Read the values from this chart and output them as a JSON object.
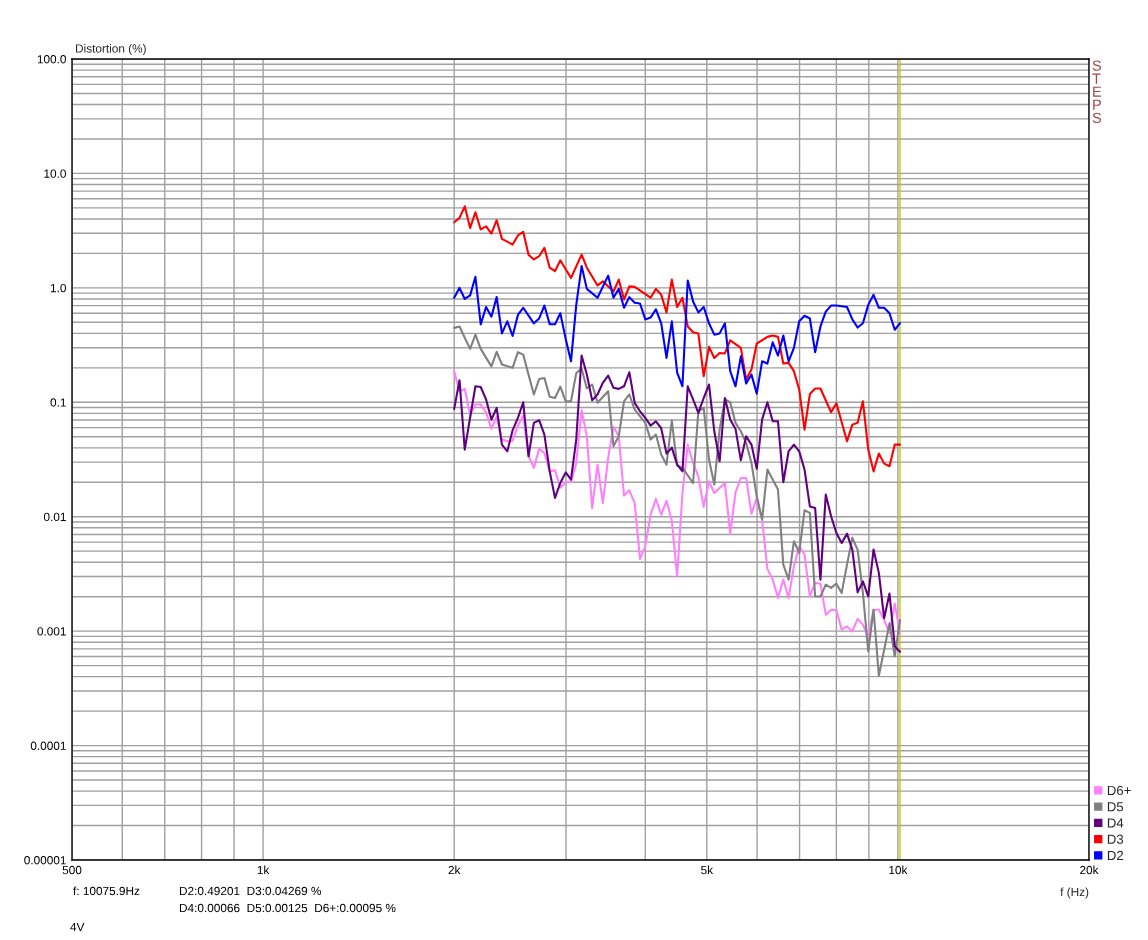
{
  "chart_data": {
    "type": "line",
    "xlabel": "f (Hz)",
    "ylabel": "Distortion (%)",
    "log": "xy",
    "xlim": [
      500,
      20000
    ],
    "xticks": [
      500,
      {
        "value": 1000,
        "label": "1k"
      },
      {
        "value": 2000,
        "label": "2k"
      },
      {
        "value": 5000,
        "label": "5k"
      },
      {
        "value": 10000,
        "label": "10k"
      },
      {
        "value": 20000,
        "label": "20k"
      }
    ],
    "ylim": [
      1e-05,
      100
    ],
    "yticks": [
      {
        "value": 1e-05,
        "label": "0.00001"
      },
      0.0001,
      0.001,
      0.01,
      0.1,
      {
        "value": 1,
        "label": "1.0"
      },
      {
        "value": 10,
        "label": "10.0"
      },
      {
        "value": 100,
        "label": "100.0"
      }
    ],
    "grid": true,
    "legend": "bottom right",
    "line_style": "solid",
    "ref_lines": [
      {
        "axis": "x",
        "value": 10075.9,
        "color": "#c8c800"
      }
    ],
    "annotations": [
      "STEPS",
      "f: 10075.9Hz",
      "D2:0.49201  D3:0.04269 %",
      "D4:0.00066  D5:0.00125  D6+:0.00095 %",
      "4V"
    ],
    "series": [
      {
        "name": "D6+",
        "color": "#ff80ff",
        "x": [
          2000,
          2039,
          2078,
          2119,
          2160,
          2202,
          2245,
          2289,
          2333,
          2378,
          2425,
          2472,
          2520,
          2569,
          2619,
          2670,
          2722,
          2774,
          2828,
          2883,
          2939,
          2997,
          3055,
          3114,
          3175,
          3236,
          3299,
          3364,
          3429,
          3496,
          3564,
          3633,
          3703,
          3775,
          3849,
          3924,
          4000,
          4078,
          4157,
          4238,
          4320,
          4404,
          4490,
          4577,
          4666,
          4757,
          4849,
          4944,
          5040,
          5138,
          5339,
          5443,
          5549,
          5657,
          5767,
          5879,
          5993,
          6110,
          6229,
          6350,
          6473,
          6599,
          6727,
          6858,
          6991,
          7127,
          7266,
          7407,
          7551,
          7698,
          7848,
          8000,
          8156,
          8314,
          8476,
          8640,
          8808,
          8980,
          9154,
          9332,
          9514,
          9699,
          9887,
          10075.9
        ],
        "values": [
          0.187,
          0.125,
          0.131,
          0.078,
          0.0955,
          0.0955,
          0.0818,
          0.0585,
          0.0745,
          0.0472,
          0.0456,
          0.0462,
          0.0625,
          0.0766,
          0.0342,
          0.0267,
          0.0392,
          0.0361,
          0.0249,
          0.0255,
          0.0179,
          0.02,
          0.02,
          0.0295,
          0.0851,
          0.0504,
          0.0119,
          0.0285,
          0.0132,
          0.0327,
          0.061,
          0.0504,
          0.0153,
          0.017,
          0.0132,
          0.00428,
          0.00551,
          0.0104,
          0.0143,
          0.0104,
          0.0138,
          0.00925,
          0.00301,
          0.0161,
          0.0427,
          0.0295,
          0.0225,
          0.0122,
          0.0204,
          0.0161,
          0.0197,
          0.00711,
          0.0163,
          0.0218,
          0.0218,
          0.0106,
          0.0146,
          0.00944,
          0.0035,
          0.00282,
          0.00195,
          0.00282,
          0.00195,
          0.00368,
          0.00551,
          0.00467,
          0.00201,
          0.00264,
          0.0026,
          0.00139,
          0.00154,
          0.00152,
          0.00103,
          0.0011,
          0.000995,
          0.00128,
          0.00114,
          0.000873,
          0.00154,
          0.00154,
          0.00126,
          0.000964,
          0.00174,
          0.00095
        ]
      },
      {
        "name": "D5",
        "color": "#808080",
        "x": [
          2000,
          2039,
          2078,
          2119,
          2160,
          2202,
          2289,
          2333,
          2378,
          2472,
          2520,
          2569,
          2670,
          2722,
          2774,
          2828,
          2883,
          2939,
          2997,
          3055,
          3114,
          3175,
          3236,
          3299,
          3364,
          3496,
          3564,
          3633,
          3703,
          3775,
          3849,
          4000,
          4078,
          4157,
          4238,
          4320,
          4404,
          4490,
          4577,
          4757,
          4849,
          4944,
          5040,
          5138,
          5238,
          5339,
          5443,
          5549,
          5657,
          5767,
          5879,
          5993,
          6110,
          6229,
          6350,
          6473,
          6599,
          6727,
          6858,
          6991,
          7127,
          7266,
          7407,
          7551,
          7698,
          7848,
          8000,
          8156,
          8314,
          8476,
          8640,
          8808,
          8980,
          9154,
          9332,
          9514,
          9699,
          9887,
          10075.9
        ],
        "values": [
          0.447,
          0.46,
          0.366,
          0.293,
          0.39,
          0.293,
          0.206,
          0.276,
          0.214,
          0.2,
          0.274,
          0.261,
          0.117,
          0.16,
          0.163,
          0.112,
          0.109,
          0.137,
          0.102,
          0.102,
          0.18,
          0.197,
          0.132,
          0.143,
          0.099,
          0.125,
          0.0412,
          0.0504,
          0.102,
          0.117,
          0.0863,
          0.0661,
          0.0472,
          0.0522,
          0.0349,
          0.0285,
          0.0692,
          0.028,
          0.0267,
          0.0197,
          0.0834,
          0.0893,
          0.0316,
          0.0191,
          0.0577,
          0.106,
          0.1,
          0.0661,
          0.0558,
          0.0442,
          0.0295,
          0.0151,
          0.00944,
          0.0258,
          0.0211,
          0.0173,
          0.00381,
          0.00282,
          0.0061,
          0.00483,
          0.0114,
          0.0108,
          0.00201,
          0.00201,
          0.00255,
          0.00239,
          0.0026,
          0.00216,
          0.00381,
          0.00653,
          0.00516,
          0.00216,
          0.000665,
          0.00154,
          0.000408,
          0.000687,
          0.00117,
          0.000603,
          0.00125
        ]
      },
      {
        "name": "D4",
        "color": "#600080",
        "x": [
          2000,
          2039,
          2078,
          2160,
          2202,
          2245,
          2289,
          2333,
          2378,
          2425,
          2472,
          2520,
          2569,
          2619,
          2670,
          2722,
          2774,
          2828,
          2883,
          2939,
          2997,
          3055,
          3114,
          3175,
          3236,
          3299,
          3364,
          3429,
          3496,
          3564,
          3633,
          3703,
          3775,
          3849,
          3924,
          4000,
          4078,
          4157,
          4238,
          4320,
          4404,
          4490,
          4577,
          4666,
          4757,
          4849,
          4944,
          5040,
          5138,
          5238,
          5339,
          5443,
          5549,
          5657,
          5767,
          5879,
          5993,
          6110,
          6229,
          6350,
          6473,
          6599,
          6727,
          6858,
          6991,
          7127,
          7266,
          7407,
          7551,
          7698,
          7848,
          8000,
          8156,
          8314,
          8476,
          8640,
          8808,
          8980,
          9154,
          9332,
          9514,
          9699,
          9887,
          10075.9
        ],
        "values": [
          0.0875,
          0.156,
          0.0386,
          0.138,
          0.136,
          0.106,
          0.0706,
          0.0893,
          0.0427,
          0.0373,
          0.0569,
          0.0731,
          0.1,
          0.0337,
          0.0661,
          0.0697,
          0.0522,
          0.0249,
          0.0146,
          0.0197,
          0.0244,
          0.0211,
          0.0472,
          0.256,
          0.175,
          0.104,
          0.117,
          0.148,
          0.171,
          0.134,
          0.131,
          0.138,
          0.183,
          0.0989,
          0.0834,
          0.0731,
          0.0625,
          0.0682,
          0.0593,
          0.0356,
          0.0402,
          0.0285,
          0.0249,
          0.138,
          0.106,
          0.0807,
          0.109,
          0.143,
          0.0558,
          0.0305,
          0.109,
          0.0706,
          0.0585,
          0.0311,
          0.0504,
          0.0427,
          0.0262,
          0.0706,
          0.1,
          0.0682,
          0.0682,
          0.02,
          0.0373,
          0.0427,
          0.0373,
          0.0258,
          0.0123,
          0.0119,
          0.00282,
          0.0156,
          0.0101,
          0.00721,
          0.0059,
          0.00711,
          0.00516,
          0.00218,
          0.00272,
          0.00201,
          0.00516,
          0.00323,
          0.0013,
          0.00213,
          0.000736,
          0.00066
        ]
      },
      {
        "name": "D3",
        "color": "#ff0000",
        "x": [
          2000,
          2039,
          2078,
          2119,
          2160,
          2202,
          2245,
          2289,
          2333,
          2378,
          2472,
          2520,
          2569,
          2619,
          2670,
          2722,
          2774,
          2828,
          2883,
          2939,
          3055,
          3175,
          3236,
          3364,
          3429,
          3564,
          3633,
          3703,
          3775,
          3849,
          4078,
          4157,
          4238,
          4320,
          4404,
          4490,
          4577,
          4666,
          4757,
          4849,
          4944,
          5040,
          5138,
          5238,
          5339,
          5443,
          5657,
          5767,
          5879,
          5993,
          6229,
          6350,
          6473,
          6599,
          6727,
          6858,
          6991,
          7127,
          7266,
          7407,
          7551,
          7848,
          8000,
          8314,
          8476,
          8640,
          8808,
          8980,
          9154,
          9332,
          9514,
          9699,
          9887,
          10075.9
        ],
        "values": [
          3.74,
          4.09,
          5.16,
          3.34,
          4.58,
          3.24,
          3.45,
          2.98,
          3.9,
          2.68,
          2.39,
          2.87,
          3.09,
          1.95,
          1.77,
          1.89,
          2.24,
          1.5,
          1.4,
          1.74,
          1.22,
          1.95,
          1.5,
          1.05,
          1.14,
          0.93,
          1.18,
          0.79,
          1.03,
          1.02,
          0.82,
          0.98,
          0.87,
          0.61,
          1.18,
          0.68,
          0.82,
          0.46,
          0.41,
          0.4,
          0.169,
          0.305,
          0.244,
          0.27,
          0.267,
          0.348,
          0.299,
          0.158,
          0.193,
          0.326,
          0.373,
          0.383,
          0.373,
          0.218,
          0.221,
          0.187,
          0.129,
          0.0577,
          0.118,
          0.132,
          0.132,
          0.0818,
          0.098,
          0.0456,
          0.0638,
          0.0661,
          0.102,
          0.0386,
          0.0249,
          0.0356,
          0.0291,
          0.0276,
          0.0427,
          0.04269
        ]
      },
      {
        "name": "D2",
        "color": "#0000ff",
        "x": [
          2000,
          2039,
          2078,
          2119,
          2160,
          2202,
          2245,
          2289,
          2333,
          2378,
          2425,
          2472,
          2520,
          2569,
          2670,
          2722,
          2774,
          2828,
          2883,
          2939,
          2997,
          3055,
          3114,
          3175,
          3236,
          3364,
          3496,
          3564,
          3633,
          3703,
          3775,
          3849,
          3924,
          4000,
          4078,
          4157,
          4238,
          4320,
          4404,
          4490,
          4577,
          4666,
          4757,
          4849,
          4944,
          5040,
          5138,
          5238,
          5339,
          5443,
          5549,
          5657,
          5767,
          5879,
          5993,
          6110,
          6229,
          6350,
          6473,
          6599,
          6727,
          6858,
          6991,
          7127,
          7266,
          7407,
          7551,
          7698,
          7848,
          8000,
          8314,
          8476,
          8640,
          8808,
          8980,
          9154,
          9332,
          9514,
          9699,
          9887,
          10075.9
        ],
        "values": [
          0.82,
          1.0,
          0.8,
          0.86,
          1.25,
          0.48,
          0.68,
          0.56,
          0.83,
          0.4,
          0.51,
          0.38,
          0.58,
          0.67,
          0.49,
          0.54,
          0.7,
          0.48,
          0.48,
          0.6,
          0.358,
          0.228,
          0.71,
          1.55,
          0.98,
          0.82,
          1.28,
          0.82,
          0.98,
          0.67,
          0.83,
          0.74,
          0.73,
          0.53,
          0.55,
          0.65,
          0.49,
          0.244,
          0.51,
          0.182,
          0.138,
          1.16,
          0.76,
          0.61,
          0.68,
          0.49,
          0.39,
          0.4,
          0.49,
          0.187,
          0.138,
          0.252,
          0.146,
          0.175,
          0.119,
          0.228,
          0.218,
          0.334,
          0.256,
          0.383,
          0.228,
          0.299,
          0.51,
          0.57,
          0.54,
          0.274,
          0.46,
          0.62,
          0.7,
          0.7,
          0.68,
          0.53,
          0.45,
          0.49,
          0.71,
          0.87,
          0.67,
          0.67,
          0.6,
          0.43,
          0.49201
        ]
      }
    ]
  }
}
